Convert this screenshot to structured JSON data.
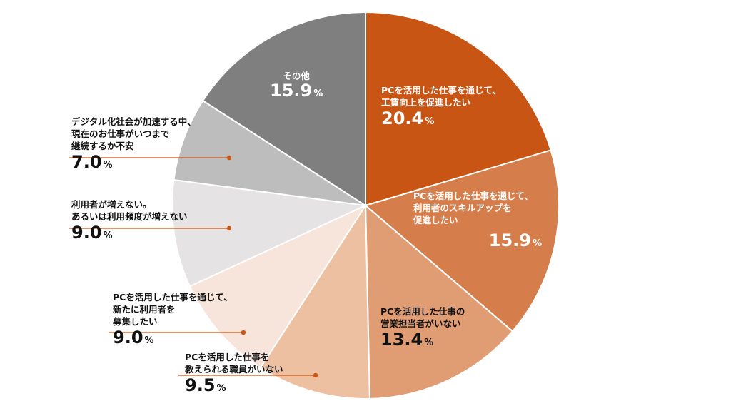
{
  "chart_data": {
    "type": "pie",
    "slices": [
      {
        "label": "PCを活用した仕事を通じて、\n工賃向上を促進したい",
        "value": 20.4,
        "color": "#C95515"
      },
      {
        "label": "PCを活用した仕事を通じて、\n利用者のスキルアップを\n促進したい",
        "value": 15.9,
        "color": "#D67E4B"
      },
      {
        "label": "PCを活用した仕事の\n営業担当者がいない",
        "value": 13.4,
        "color": "#E09C73"
      },
      {
        "label": "PCを活用した仕事を\n教えられる職員がいない",
        "value": 9.5,
        "color": "#EDC0A2"
      },
      {
        "label": "PCを活用した仕事を通じて、\n新たに利用者を\n募集したい",
        "value": 9.0,
        "color": "#F7E4DA"
      },
      {
        "label": "利用者が増えない。\nあるいは利用頻度が増えない",
        "value": 9.0,
        "color": "#E6E3E4"
      },
      {
        "label": "デジタル化社会が加速する中、\n現在のお仕事がいつまで\n継続するか不安",
        "value": 7.0,
        "color": "#BDBDBD"
      },
      {
        "label": "その他",
        "value": 15.9,
        "color": "#7F7F7F"
      }
    ],
    "unit": "%",
    "display_values": [
      "20.4",
      "15.9",
      "13.4",
      "9.5",
      "9.0",
      "9.0",
      "7.0",
      "15.9"
    ],
    "leader_line_color": "#C95515"
  }
}
